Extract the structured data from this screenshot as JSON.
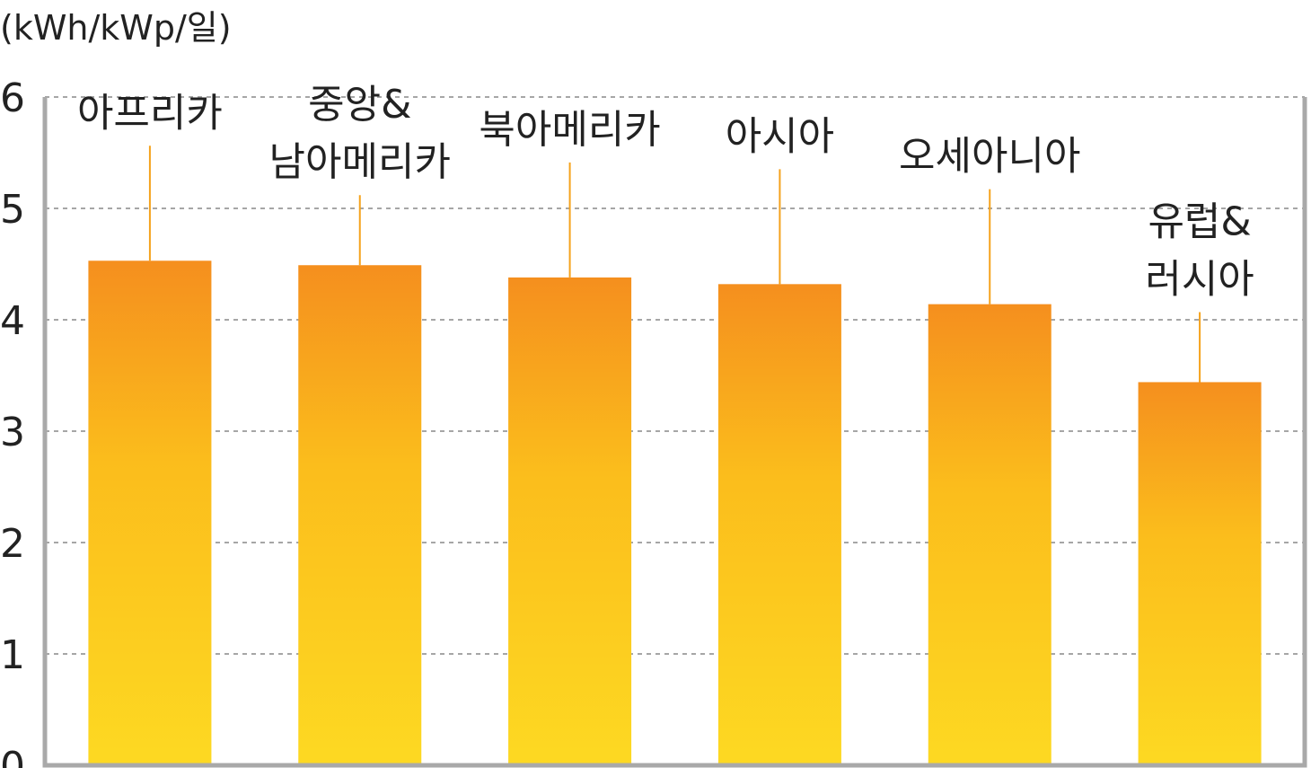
{
  "chart_data": {
    "type": "bar",
    "ylabel": "(kWh/kWp/일)",
    "ylim": [
      0,
      6
    ],
    "yticks": [
      "0",
      "1",
      "2",
      "3",
      "4",
      "5",
      "6"
    ],
    "grid": true,
    "categories": [
      [
        "아프리카"
      ],
      [
        "중앙&",
        "남아메리카"
      ],
      [
        "북아메리카"
      ],
      [
        "아시아"
      ],
      [
        "오세아니아"
      ],
      [
        "유럽&",
        "러시아"
      ]
    ],
    "values": [
      4.53,
      4.49,
      4.38,
      4.32,
      4.14,
      3.44
    ],
    "bar_colors": {
      "top": "#f58f1e",
      "middle": "#fbbd1c",
      "bottom": "#fdd922"
    }
  }
}
